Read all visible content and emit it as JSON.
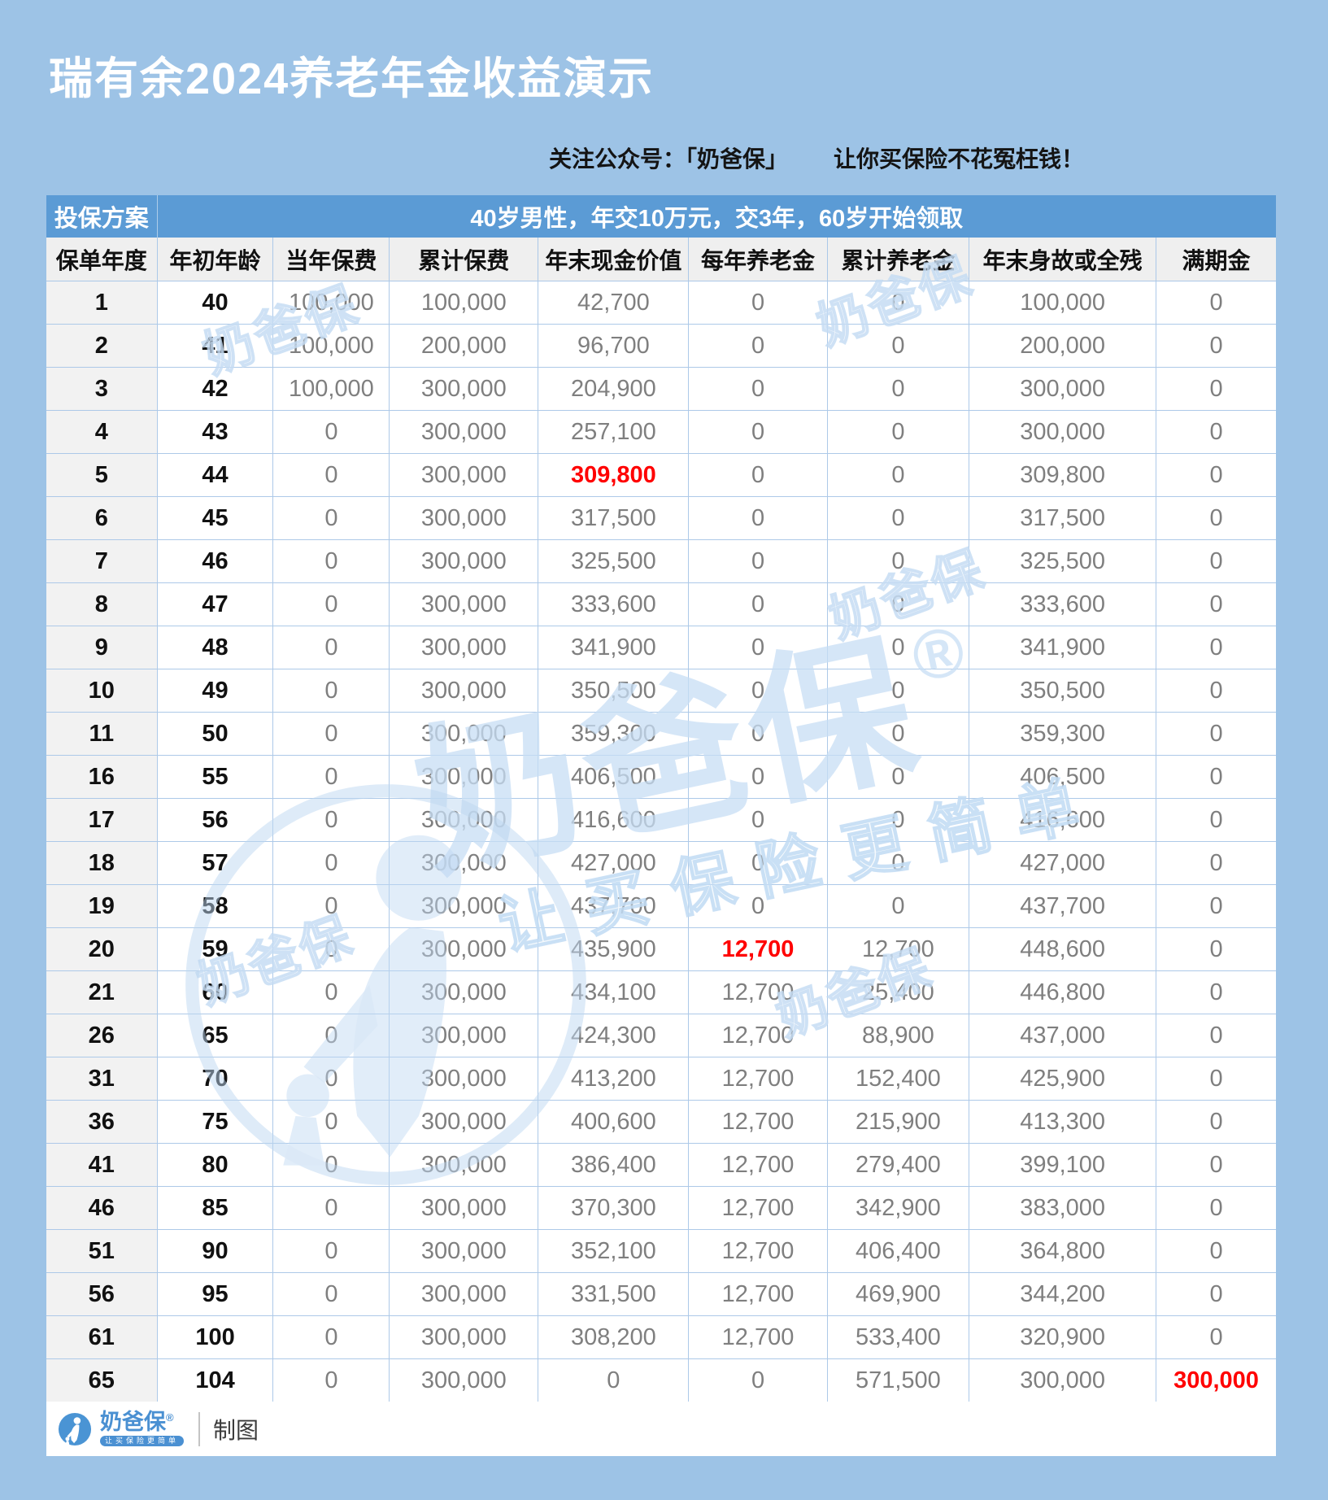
{
  "title": "瑞有余2024养老年金收益演示",
  "promo": {
    "left": "关注公众号：「奶爸保」",
    "right": "让你买保险不花冤枉钱！"
  },
  "table": {
    "plan_label": "投保方案",
    "plan_desc": "40岁男性，年交10万元，交3年，60岁开始领取",
    "columns": [
      "保单年度",
      "年初年龄",
      "当年保费",
      "累计保费",
      "年末现金价值",
      "每年养老金",
      "累计养老金",
      "年末身故或全残",
      "满期金"
    ],
    "rows": [
      [
        "1",
        "40",
        "100,000",
        "100,000",
        "42,700",
        "0",
        "0",
        "100,000",
        "0"
      ],
      [
        "2",
        "41",
        "100,000",
        "200,000",
        "96,700",
        "0",
        "0",
        "200,000",
        "0"
      ],
      [
        "3",
        "42",
        "100,000",
        "300,000",
        "204,900",
        "0",
        "0",
        "300,000",
        "0"
      ],
      [
        "4",
        "43",
        "0",
        "300,000",
        "257,100",
        "0",
        "0",
        "300,000",
        "0"
      ],
      [
        "5",
        "44",
        "0",
        "300,000",
        "309,800",
        "0",
        "0",
        "309,800",
        "0"
      ],
      [
        "6",
        "45",
        "0",
        "300,000",
        "317,500",
        "0",
        "0",
        "317,500",
        "0"
      ],
      [
        "7",
        "46",
        "0",
        "300,000",
        "325,500",
        "0",
        "0",
        "325,500",
        "0"
      ],
      [
        "8",
        "47",
        "0",
        "300,000",
        "333,600",
        "0",
        "0",
        "333,600",
        "0"
      ],
      [
        "9",
        "48",
        "0",
        "300,000",
        "341,900",
        "0",
        "0",
        "341,900",
        "0"
      ],
      [
        "10",
        "49",
        "0",
        "300,000",
        "350,500",
        "0",
        "0",
        "350,500",
        "0"
      ],
      [
        "11",
        "50",
        "0",
        "300,000",
        "359,300",
        "0",
        "0",
        "359,300",
        "0"
      ],
      [
        "16",
        "55",
        "0",
        "300,000",
        "406,500",
        "0",
        "0",
        "406,500",
        "0"
      ],
      [
        "17",
        "56",
        "0",
        "300,000",
        "416,600",
        "0",
        "0",
        "416,600",
        "0"
      ],
      [
        "18",
        "57",
        "0",
        "300,000",
        "427,000",
        "0",
        "0",
        "427,000",
        "0"
      ],
      [
        "19",
        "58",
        "0",
        "300,000",
        "437,700",
        "0",
        "0",
        "437,700",
        "0"
      ],
      [
        "20",
        "59",
        "0",
        "300,000",
        "435,900",
        "12,700",
        "12,700",
        "448,600",
        "0"
      ],
      [
        "21",
        "60",
        "0",
        "300,000",
        "434,100",
        "12,700",
        "25,400",
        "446,800",
        "0"
      ],
      [
        "26",
        "65",
        "0",
        "300,000",
        "424,300",
        "12,700",
        "88,900",
        "437,000",
        "0"
      ],
      [
        "31",
        "70",
        "0",
        "300,000",
        "413,200",
        "12,700",
        "152,400",
        "425,900",
        "0"
      ],
      [
        "36",
        "75",
        "0",
        "300,000",
        "400,600",
        "12,700",
        "215,900",
        "413,300",
        "0"
      ],
      [
        "41",
        "80",
        "0",
        "300,000",
        "386,400",
        "12,700",
        "279,400",
        "399,100",
        "0"
      ],
      [
        "46",
        "85",
        "0",
        "300,000",
        "370,300",
        "12,700",
        "342,900",
        "383,000",
        "0"
      ],
      [
        "51",
        "90",
        "0",
        "300,000",
        "352,100",
        "12,700",
        "406,400",
        "364,800",
        "0"
      ],
      [
        "56",
        "95",
        "0",
        "300,000",
        "331,500",
        "12,700",
        "469,900",
        "344,200",
        "0"
      ],
      [
        "61",
        "100",
        "0",
        "300,000",
        "308,200",
        "12,700",
        "533,400",
        "320,900",
        "0"
      ],
      [
        "65",
        "104",
        "0",
        "300,000",
        "0",
        "0",
        "571,500",
        "300,000",
        "300,000"
      ]
    ],
    "red_cells": [
      [
        4,
        4
      ],
      [
        15,
        5
      ],
      [
        25,
        8
      ]
    ]
  },
  "watermark": {
    "brand": "奶爸保",
    "reg": "®",
    "tagline": "让买保险更简单"
  },
  "footer": {
    "brand": "奶爸保",
    "reg": "®",
    "tagline": "让买保险更简单",
    "suffix": "制图"
  },
  "colors": {
    "page_bg": "#9dc3e6",
    "header_bar": "#5b9bd5",
    "subheader_bg": "#efefef",
    "first_col_bg": "#f2f2f2",
    "value_text": "#7f7f7f",
    "highlight_red": "#ff0000",
    "brand_blue": "#4a90d2"
  }
}
